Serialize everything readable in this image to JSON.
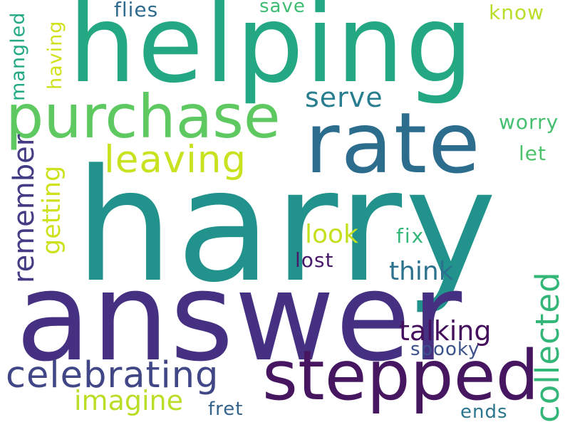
{
  "word_cloud": {
    "words": [
      {
        "text": "harry",
        "color": "#22928c"
      },
      {
        "text": "answer",
        "color": "#453081"
      },
      {
        "text": "helping",
        "color": "#23a883"
      },
      {
        "text": "rate",
        "color": "#2c6d8e"
      },
      {
        "text": "stepped",
        "color": "#461760"
      },
      {
        "text": "purchase",
        "color": "#5ec960"
      },
      {
        "text": "celebrating",
        "color": "#414786"
      },
      {
        "text": "collected",
        "color": "#34b679"
      },
      {
        "text": "leaving",
        "color": "#c9e220"
      },
      {
        "text": "remember",
        "color": "#433c84"
      },
      {
        "text": "talking",
        "color": "#440f5c"
      },
      {
        "text": "serve",
        "color": "#287d8e"
      },
      {
        "text": "getting",
        "color": "#cde11d"
      },
      {
        "text": "imagine",
        "color": "#bade28"
      },
      {
        "text": "think",
        "color": "#2c728e"
      },
      {
        "text": "look",
        "color": "#c5e021"
      },
      {
        "text": "flies",
        "color": "#2f6b8e"
      },
      {
        "text": "mangled",
        "color": "#23a983"
      },
      {
        "text": "having",
        "color": "#d0e11c"
      },
      {
        "text": "save",
        "color": "#3fbc73"
      },
      {
        "text": "know",
        "color": "#b8de29"
      },
      {
        "text": "worry",
        "color": "#45bf70"
      },
      {
        "text": "let",
        "color": "#4cc26c"
      },
      {
        "text": "fix",
        "color": "#35b779"
      },
      {
        "text": "lost",
        "color": "#48186a"
      },
      {
        "text": "spooky",
        "color": "#3b528b"
      },
      {
        "text": "fret",
        "color": "#33638d"
      },
      {
        "text": "ends",
        "color": "#2a768e"
      }
    ]
  }
}
